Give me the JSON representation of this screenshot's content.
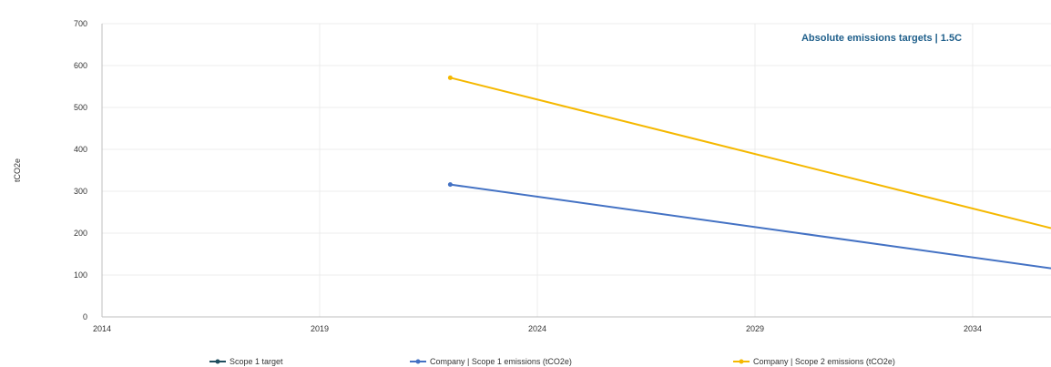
{
  "chart_data": {
    "type": "line",
    "title": "Absolute emissions targets | 1.5C",
    "title_color": "#1f5f8b",
    "xlabel": "",
    "ylabel": "tCO2e",
    "xlim": [
      2014,
      2035.8
    ],
    "ylim": [
      0,
      700
    ],
    "x_ticks": [
      2014,
      2019,
      2024,
      2029,
      2034
    ],
    "y_ticks": [
      0,
      100,
      200,
      300,
      400,
      500,
      600,
      700
    ],
    "grid": true,
    "legend_position": "bottom",
    "series": [
      {
        "name": "Scope 1 target",
        "color": "#1f4e5f",
        "marker": "circle",
        "points": []
      },
      {
        "name": "Company | Scope 1 emissions (tCO2e)",
        "color": "#4472c4",
        "marker": "circle",
        "points": [
          [
            2022.0,
            316
          ],
          [
            2035.8,
            116
          ]
        ]
      },
      {
        "name": "Company | Scope 2 emissions (tCO2e)",
        "color": "#f5b800",
        "marker": "circle",
        "points": [
          [
            2022.0,
            571
          ],
          [
            2035.8,
            212
          ]
        ]
      }
    ]
  }
}
